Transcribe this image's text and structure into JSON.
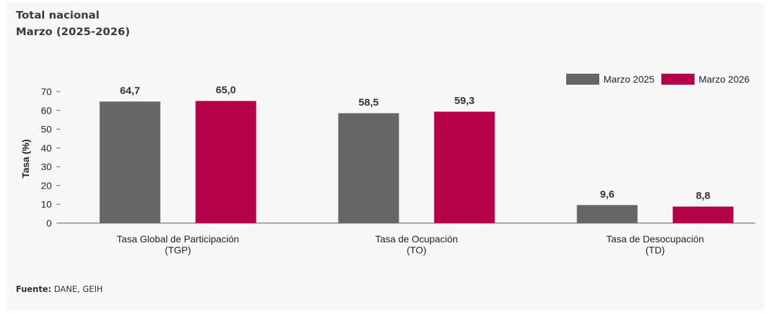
{
  "header": {
    "title": "Total nacional",
    "subtitle": "Marzo (2025-2026)"
  },
  "source": {
    "label": "Fuente:",
    "text": "DANE, GEIH"
  },
  "chart_data": {
    "type": "bar",
    "categories": [
      [
        "Tasa Global de Participación",
        "(TGP)"
      ],
      [
        "Tasa de Ocupación",
        "(TO)"
      ],
      [
        "Tasa de Desocupación",
        "(TD)"
      ]
    ],
    "series": [
      {
        "name": "Marzo  2025",
        "color": "#666666",
        "values": [
          64.7,
          58.5,
          9.6
        ],
        "labels": [
          "64,7",
          "58,5",
          "9,6"
        ]
      },
      {
        "name": "Marzo  2026",
        "color": "#b5004a",
        "values": [
          65.0,
          59.3,
          8.8
        ],
        "labels": [
          "65,0",
          "59,3",
          "8,8"
        ]
      }
    ],
    "ylabel": "Tasa (%)",
    "xlabel": "",
    "ylim": [
      0,
      70
    ],
    "yticks": [
      0,
      10,
      20,
      30,
      40,
      50,
      60,
      70
    ],
    "grid": false,
    "legend": "top-right"
  }
}
